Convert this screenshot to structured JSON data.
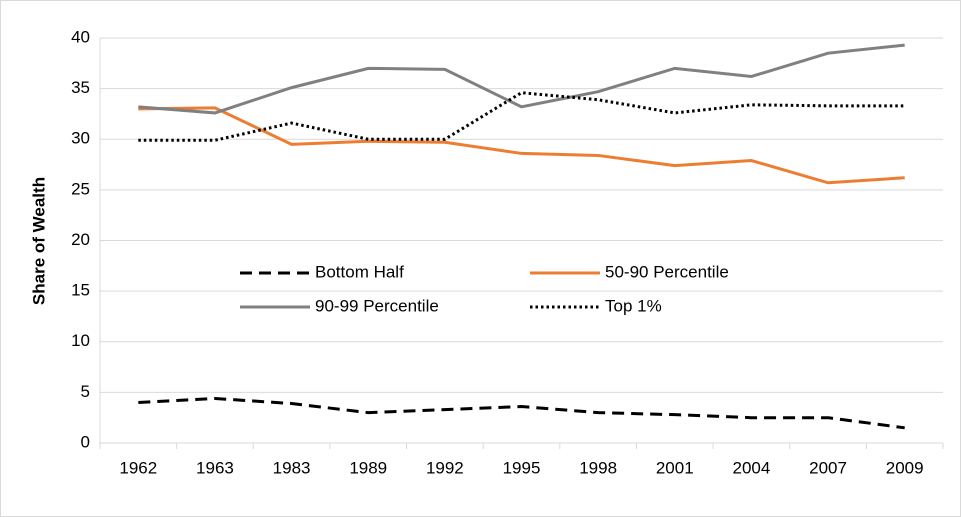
{
  "chart_data": {
    "type": "line",
    "y_label": "Share of Wealth",
    "categories": [
      "1962",
      "1963",
      "1983",
      "1989",
      "1992",
      "1995",
      "1998",
      "2001",
      "2004",
      "2007",
      "2009"
    ],
    "series": [
      {
        "name": "Bottom Half",
        "color": "#000000",
        "dash": "dashed",
        "values": [
          4.0,
          4.4,
          3.9,
          3.0,
          3.3,
          3.6,
          3.0,
          2.8,
          2.5,
          2.5,
          1.5
        ]
      },
      {
        "name": "50-90 Percentile",
        "color": "#ed7d31",
        "dash": "solid",
        "values": [
          33.0,
          33.1,
          29.5,
          29.8,
          29.7,
          28.6,
          28.4,
          27.4,
          27.9,
          25.7,
          26.2
        ]
      },
      {
        "name": "90-99 Percentile",
        "color": "#808080",
        "dash": "solid",
        "values": [
          33.2,
          32.6,
          35.1,
          37.0,
          36.9,
          33.2,
          34.7,
          37.0,
          36.2,
          38.5,
          39.3
        ]
      },
      {
        "name": "Top 1%",
        "color": "#000000",
        "dash": "dotted",
        "values": [
          29.9,
          29.9,
          31.6,
          30.0,
          30.0,
          34.6,
          33.9,
          32.6,
          33.4,
          33.3,
          33.3
        ]
      }
    ],
    "ylim": [
      0,
      40
    ],
    "yticks": [
      0,
      5,
      10,
      15,
      20,
      25,
      30,
      35,
      40
    ],
    "grid": true,
    "legend": "center"
  }
}
